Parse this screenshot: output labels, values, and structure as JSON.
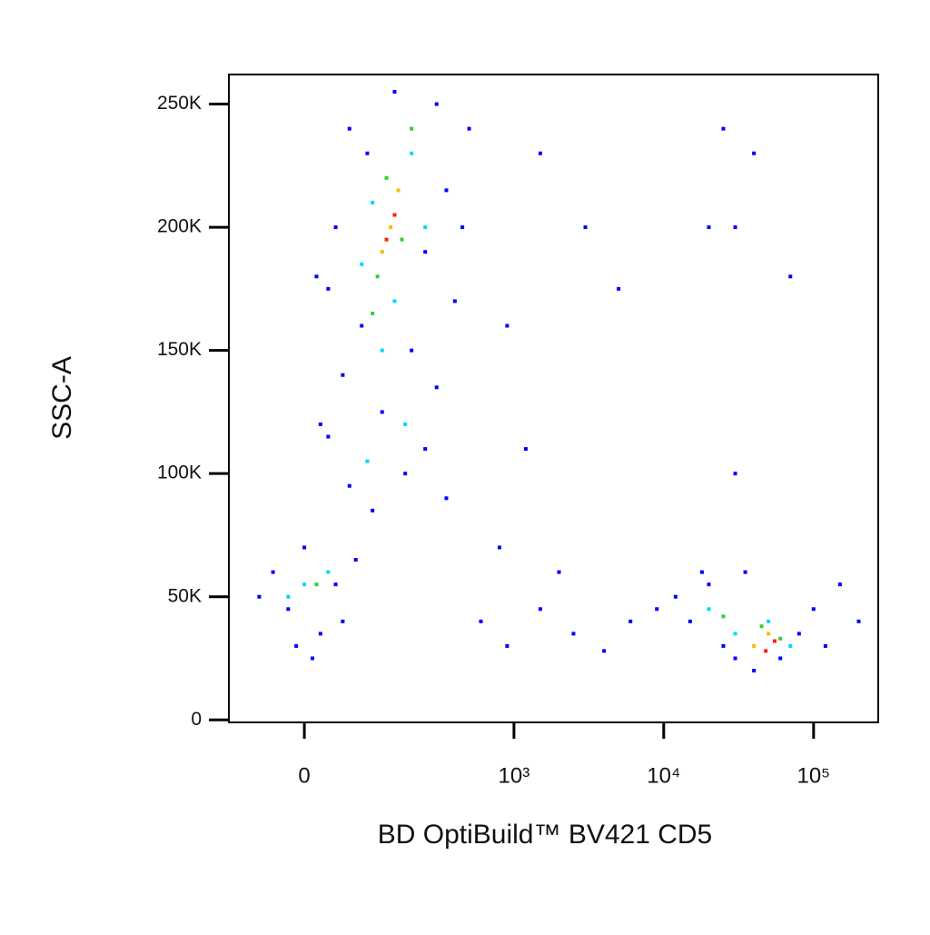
{
  "chart_data": {
    "type": "scatter",
    "xlabel": "BD OptiBuild™ BV421 CD5",
    "ylabel": "SSC-A",
    "xscale": "biexponential",
    "xlim": [
      -115,
      270000
    ],
    "xticks": [
      0,
      {
        "value": 1000,
        "label": "10³"
      },
      {
        "value": 10000,
        "label": "10⁴"
      },
      {
        "value": 100000,
        "label": "10⁵"
      }
    ],
    "ylim": [
      -1000,
      262000
    ],
    "yticks": [
      0,
      {
        "value": 50000,
        "label": "50K"
      },
      {
        "value": 100000,
        "label": "100K"
      },
      {
        "value": 150000,
        "label": "150K"
      },
      {
        "value": 200000,
        "label": "200K"
      },
      {
        "value": 250000,
        "label": "250K"
      }
    ],
    "series": [
      {
        "color": "#0000ff",
        "x": [
          60,
          150,
          300,
          90,
          350,
          40,
          250,
          30,
          400,
          80,
          200,
          50,
          300,
          120,
          30,
          250,
          180,
          60,
          350,
          100,
          20,
          450,
          500,
          15,
          -40,
          -20,
          0,
          20,
          40,
          -60,
          10,
          70,
          -10,
          50,
          600,
          900,
          1500,
          2500,
          4000,
          6000,
          800,
          2000,
          1200,
          3000,
          900,
          5000,
          1500,
          12000,
          15000,
          20000,
          25000,
          30000,
          40000,
          60000,
          80000,
          100000,
          150000,
          200000,
          18000,
          35000,
          120000,
          9000,
          25000,
          30000,
          70000,
          20000,
          40000,
          30000
        ],
        "values": [
          240000,
          255000,
          250000,
          230000,
          215000,
          200000,
          190000,
          175000,
          170000,
          160000,
          150000,
          140000,
          135000,
          125000,
          115000,
          110000,
          100000,
          95000,
          90000,
          85000,
          120000,
          200000,
          240000,
          180000,
          60000,
          45000,
          70000,
          35000,
          55000,
          50000,
          25000,
          65000,
          30000,
          40000,
          40000,
          30000,
          45000,
          35000,
          28000,
          40000,
          70000,
          60000,
          110000,
          200000,
          160000,
          175000,
          230000,
          50000,
          40000,
          55000,
          30000,
          25000,
          20000,
          25000,
          35000,
          45000,
          55000,
          40000,
          60000,
          60000,
          30000,
          45000,
          240000,
          200000,
          180000,
          200000,
          230000,
          100000
        ]
      },
      {
        "color": "#00d8ff",
        "x": [
          100,
          200,
          150,
          80,
          250,
          120,
          180,
          90,
          0,
          30,
          -20,
          20000,
          50000,
          70000,
          30000
        ],
        "values": [
          210000,
          230000,
          170000,
          185000,
          200000,
          150000,
          120000,
          105000,
          55000,
          60000,
          50000,
          45000,
          40000,
          30000,
          35000
        ]
      },
      {
        "color": "#30d030",
        "x": [
          130,
          170,
          110,
          200,
          150,
          100,
          25000,
          45000,
          60000,
          15
        ],
        "values": [
          220000,
          195000,
          180000,
          240000,
          205000,
          165000,
          42000,
          38000,
          33000,
          55000
        ]
      },
      {
        "color": "#f0c000",
        "x": [
          140,
          160,
          120,
          50000,
          40000
        ],
        "values": [
          200000,
          215000,
          190000,
          35000,
          30000
        ]
      },
      {
        "color": "#ff2000",
        "x": [
          150,
          130,
          55000,
          48000
        ],
        "values": [
          205000,
          195000,
          32000,
          28000
        ]
      }
    ]
  }
}
